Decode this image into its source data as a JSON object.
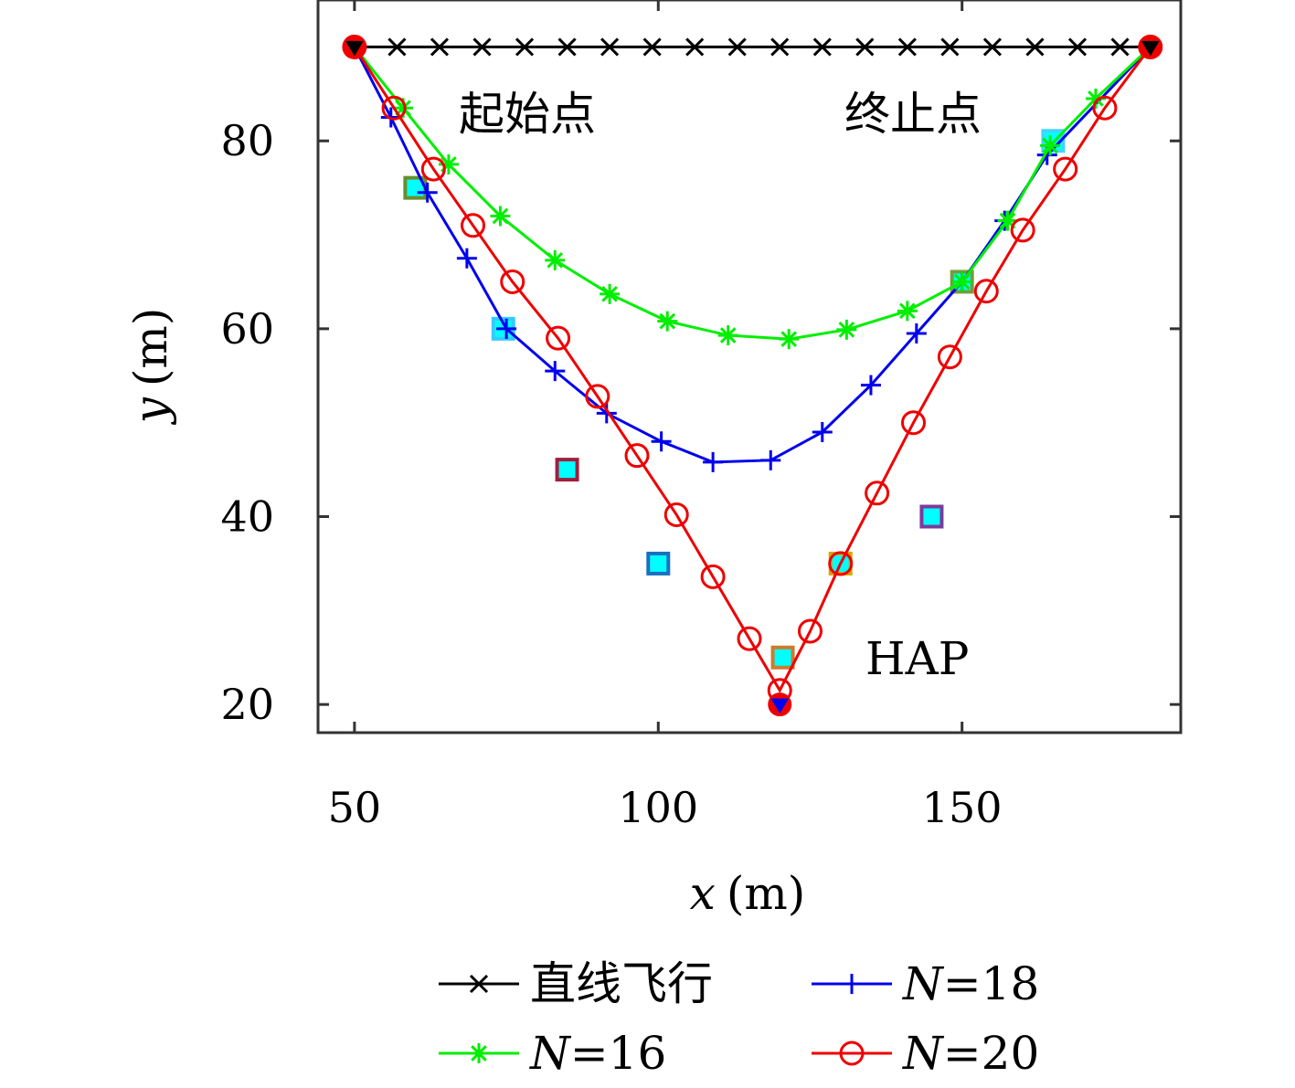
{
  "chart_data": {
    "type": "line",
    "xlabel_var": "x",
    "xlabel_unit": "(m)",
    "ylabel_var": "y",
    "ylabel_unit": "(m)",
    "xlim": [
      44,
      186
    ],
    "ylim": [
      17,
      95
    ],
    "xticks": [
      50,
      100,
      150
    ],
    "yticks": [
      20,
      40,
      60,
      80
    ],
    "grid": false,
    "legend_position": "bottom",
    "annotations": {
      "start": "起始点",
      "end": "终止点",
      "hap": "HAP"
    },
    "series": [
      {
        "name": "直线飞行",
        "name_var": "",
        "name_rest": "直线飞行",
        "color": "#000000",
        "marker": "x",
        "x": [
          50,
          57,
          64,
          71,
          78,
          85,
          92,
          99,
          106,
          113,
          120,
          127,
          134,
          141,
          148,
          155,
          162,
          169,
          176,
          181
        ],
        "y": [
          90,
          90,
          90,
          90,
          90,
          90,
          90,
          90,
          90,
          90,
          90,
          90,
          90,
          90,
          90,
          90,
          90,
          90,
          90,
          90
        ]
      },
      {
        "name": "N=18",
        "name_var": "N",
        "name_rest": "=18",
        "color": "#0000ee",
        "marker": "+",
        "x": [
          50,
          56,
          62,
          68.5,
          75,
          83,
          91.5,
          100.5,
          109,
          118.5,
          127,
          135,
          142.5,
          150,
          157,
          164,
          181
        ],
        "y": [
          90,
          82.5,
          74.5,
          67.5,
          60,
          55.5,
          51,
          48,
          45.8,
          46,
          49,
          54,
          59.5,
          65,
          71.5,
          78.5,
          90
        ]
      },
      {
        "name": "N=16",
        "name_var": "N",
        "name_rest": "=16",
        "color": "#00ee00",
        "marker": "*",
        "x": [
          50,
          58,
          65.5,
          74,
          83,
          92,
          101.5,
          111.5,
          121.5,
          131,
          141,
          150,
          157.5,
          164.5,
          172,
          181
        ],
        "y": [
          90,
          83.5,
          77.5,
          72,
          67.3,
          63.7,
          60.8,
          59.3,
          58.9,
          59.9,
          61.9,
          65,
          71.5,
          79.5,
          84.5,
          90
        ]
      },
      {
        "name": "N=20",
        "name_var": "N",
        "name_rest": "=20",
        "color": "#ee0000",
        "marker": "o",
        "x": [
          50,
          56.5,
          63,
          69.5,
          76,
          83.5,
          90,
          96.5,
          103,
          109,
          115,
          120,
          125,
          130,
          136,
          142,
          148,
          154,
          160,
          167,
          173.5,
          181
        ],
        "y": [
          90,
          83.5,
          77,
          71,
          65,
          59,
          52.8,
          46.5,
          40.2,
          33.6,
          27,
          21.5,
          27.8,
          35,
          42.5,
          50,
          57,
          64,
          70.5,
          77,
          83.5,
          90
        ]
      }
    ],
    "markers": {
      "start_point": {
        "x": 50,
        "y": 90
      },
      "end_point": {
        "x": 181,
        "y": 90
      },
      "hap_point": {
        "x": 120,
        "y": 20
      },
      "ground_nodes": [
        {
          "x": 60,
          "y": 75,
          "edge": "#6a8e2a"
        },
        {
          "x": 74.5,
          "y": 60,
          "edge": "#33ccff"
        },
        {
          "x": 85,
          "y": 45,
          "edge": "#a01e3c"
        },
        {
          "x": 100,
          "y": 35,
          "edge": "#1a6fc0"
        },
        {
          "x": 120.5,
          "y": 25,
          "edge": "#d07a2a"
        },
        {
          "x": 130,
          "y": 35,
          "edge": "#d8a400"
        },
        {
          "x": 145,
          "y": 40,
          "edge": "#7a3c9a"
        },
        {
          "x": 150,
          "y": 65,
          "edge": "#7a9a3a"
        },
        {
          "x": 165,
          "y": 80,
          "edge": "#3fd6ff"
        }
      ],
      "node_fill": "#00ffff"
    }
  }
}
